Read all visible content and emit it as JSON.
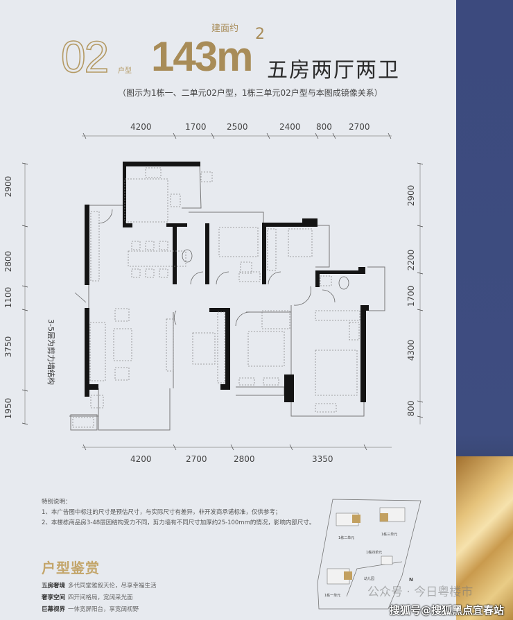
{
  "header": {
    "unit_number": "02",
    "unit_label": "户型",
    "area_label": "建面约",
    "area_value": "143m",
    "area_unit_sup": "2",
    "layout_title": "五房两厅两卫",
    "subtitle": "（图示为1栋一、二单元02户型，1栋三单元02户型与本图成镜像关系）"
  },
  "dimensions": {
    "top": [
      "4200",
      "1700",
      "2500",
      "2400",
      "800",
      "2700"
    ],
    "bottom": [
      "4200",
      "2700",
      "2800",
      "3350"
    ],
    "left": [
      "2900",
      "2800",
      "1100",
      "3750",
      "1950"
    ],
    "right": [
      "2900",
      "2200",
      "1700",
      "4300",
      "800"
    ]
  },
  "plan": {
    "wall_note": "3-5层为剪力墙结构"
  },
  "notes": {
    "title": "特别说明：",
    "items": [
      "1、本广告图中标注的尺寸是预估尺寸，与实际尺寸有差异，非开发商承诺标准，仅供参考；",
      "2、本楼栋商品房3-48层因结构受力不同，剪力墙有不同尺寸加厚约25-100mm的情况，影响内部尺寸。"
    ]
  },
  "appreciation": {
    "title": "户型鉴赏",
    "features": [
      {
        "label": "五房奢境",
        "text": "多代同堂雅叙天伦，尽享幸福生活"
      },
      {
        "label": "奢享空间",
        "text": "四开间格局，宽阔采光面"
      },
      {
        "label": "巨幕视界",
        "text": "一体宽屏阳台，享宽阔视野"
      }
    ]
  },
  "site_plan": {
    "labels": [
      "1栋二单元",
      "1栋三单元",
      "1栋四单元",
      "1栋一单元",
      "幼儿园"
    ],
    "north": "N"
  },
  "watermarks": {
    "wechat": "公众号 · 今日粤楼市",
    "sohu": "搜狐号@搜狐黑点宜春站"
  },
  "colors": {
    "gold": "#b49a64",
    "navy_band": "#3c4a7e",
    "background": "#e7eaef",
    "wall": "#111111"
  }
}
